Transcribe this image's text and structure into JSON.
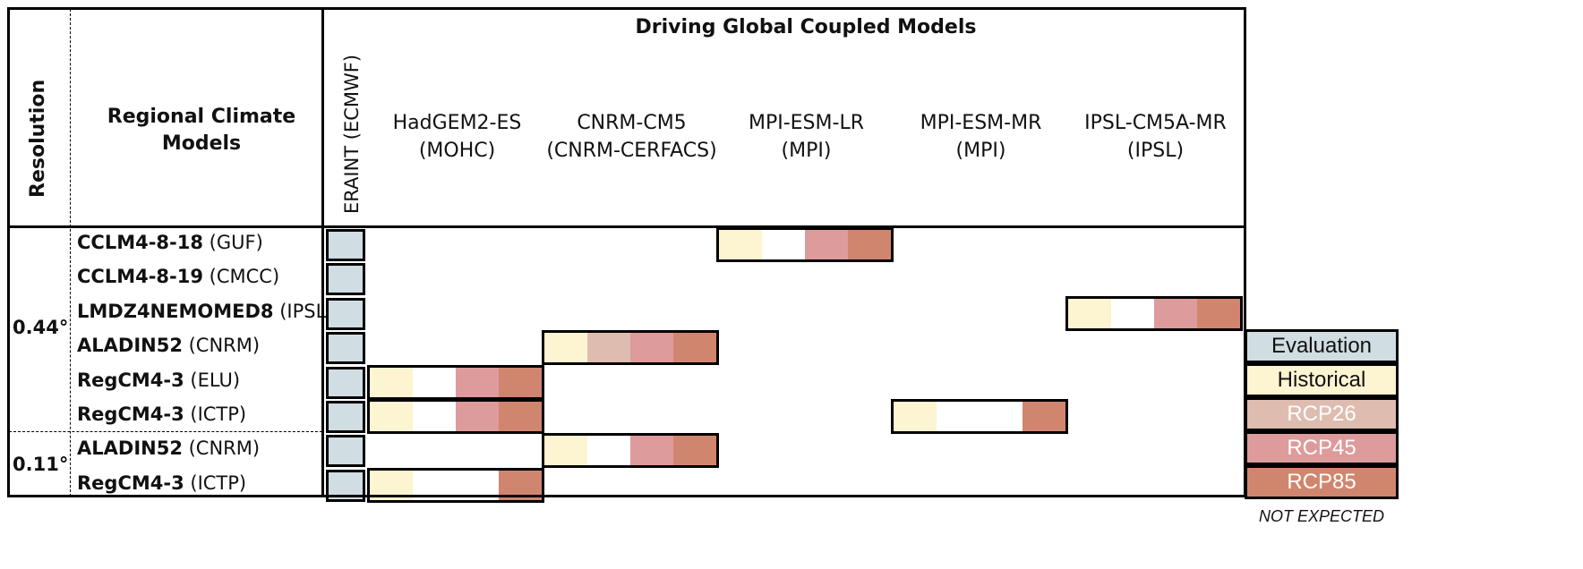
{
  "header": {
    "resolution": "Resolution",
    "rcm": "Regional Climate Models",
    "driving": "Driving Global Coupled Models",
    "eraint": "ERAINT (ECMWF)"
  },
  "gcms": [
    {
      "name": "HadGEM2-ES",
      "inst": "(MOHC)"
    },
    {
      "name": "CNRM-CM5",
      "inst": "(CNRM-CERFACS)"
    },
    {
      "name": "MPI-ESM-LR",
      "inst": "(MPI)"
    },
    {
      "name": "MPI-ESM-MR",
      "inst": "(MPI)"
    },
    {
      "name": "IPSL-CM5A-MR",
      "inst": "(IPSL)"
    }
  ],
  "resolutions": [
    "0.44°",
    "0.11°"
  ],
  "rcms": [
    {
      "bold": "CCLM4-8-18",
      "inst": " (GUF)"
    },
    {
      "bold": "CCLM4-8-19",
      "inst": " (CMCC)"
    },
    {
      "bold": "LMDZ4NEMOMED8",
      "inst": " (IPSL)"
    },
    {
      "bold": "ALADIN52",
      "inst": " (CNRM)"
    },
    {
      "bold": "RegCM4-3",
      "inst": " (ELU)"
    },
    {
      "bold": "RegCM4-3",
      "inst": " (ICTP)"
    },
    {
      "bold": "ALADIN52",
      "inst": " (CNRM)"
    },
    {
      "bold": "RegCM4-3",
      "inst": " (ICTP)"
    }
  ],
  "legend": [
    {
      "label": "Evaluation",
      "color": "#d0dde2",
      "text_color": "#111111"
    },
    {
      "label": "Historical",
      "color": "#fdf4d1",
      "text_color": "#111111"
    },
    {
      "label": "RCP26",
      "color": "#dfbcb0",
      "text_color": "#ffffff"
    },
    {
      "label": "RCP45",
      "color": "#dd9b9b",
      "text_color": "#ffffff"
    },
    {
      "label": "RCP85",
      "color": "#d0866e",
      "text_color": "#ffffff"
    },
    {
      "label": "NOT EXPECTED",
      "color": "#ffffff",
      "text_color": "#111111"
    }
  ],
  "matrix": [
    {
      "row": 0,
      "gcm": 2,
      "scenarios": [
        "Historical",
        "",
        "RCP45",
        "RCP85"
      ]
    },
    {
      "row": 2,
      "gcm": 4,
      "scenarios": [
        "Historical",
        "",
        "RCP45",
        "RCP85"
      ]
    },
    {
      "row": 3,
      "gcm": 1,
      "scenarios": [
        "Historical",
        "RCP26",
        "RCP45",
        "RCP85"
      ]
    },
    {
      "row": 4,
      "gcm": 0,
      "scenarios": [
        "Historical",
        "",
        "RCP45",
        "RCP85"
      ]
    },
    {
      "row": 5,
      "gcm": 0,
      "scenarios": [
        "Historical",
        "",
        "RCP45",
        "RCP85"
      ]
    },
    {
      "row": 5,
      "gcm": 3,
      "scenarios": [
        "Historical",
        "",
        "",
        "RCP85"
      ]
    },
    {
      "row": 6,
      "gcm": 1,
      "scenarios": [
        "Historical",
        "",
        "RCP45",
        "RCP85"
      ]
    },
    {
      "row": 7,
      "gcm": 0,
      "scenarios": [
        "Historical",
        "",
        "",
        "RCP85"
      ]
    }
  ],
  "evaluation_rows": [
    0,
    1,
    2,
    3,
    4,
    5,
    6,
    7
  ]
}
